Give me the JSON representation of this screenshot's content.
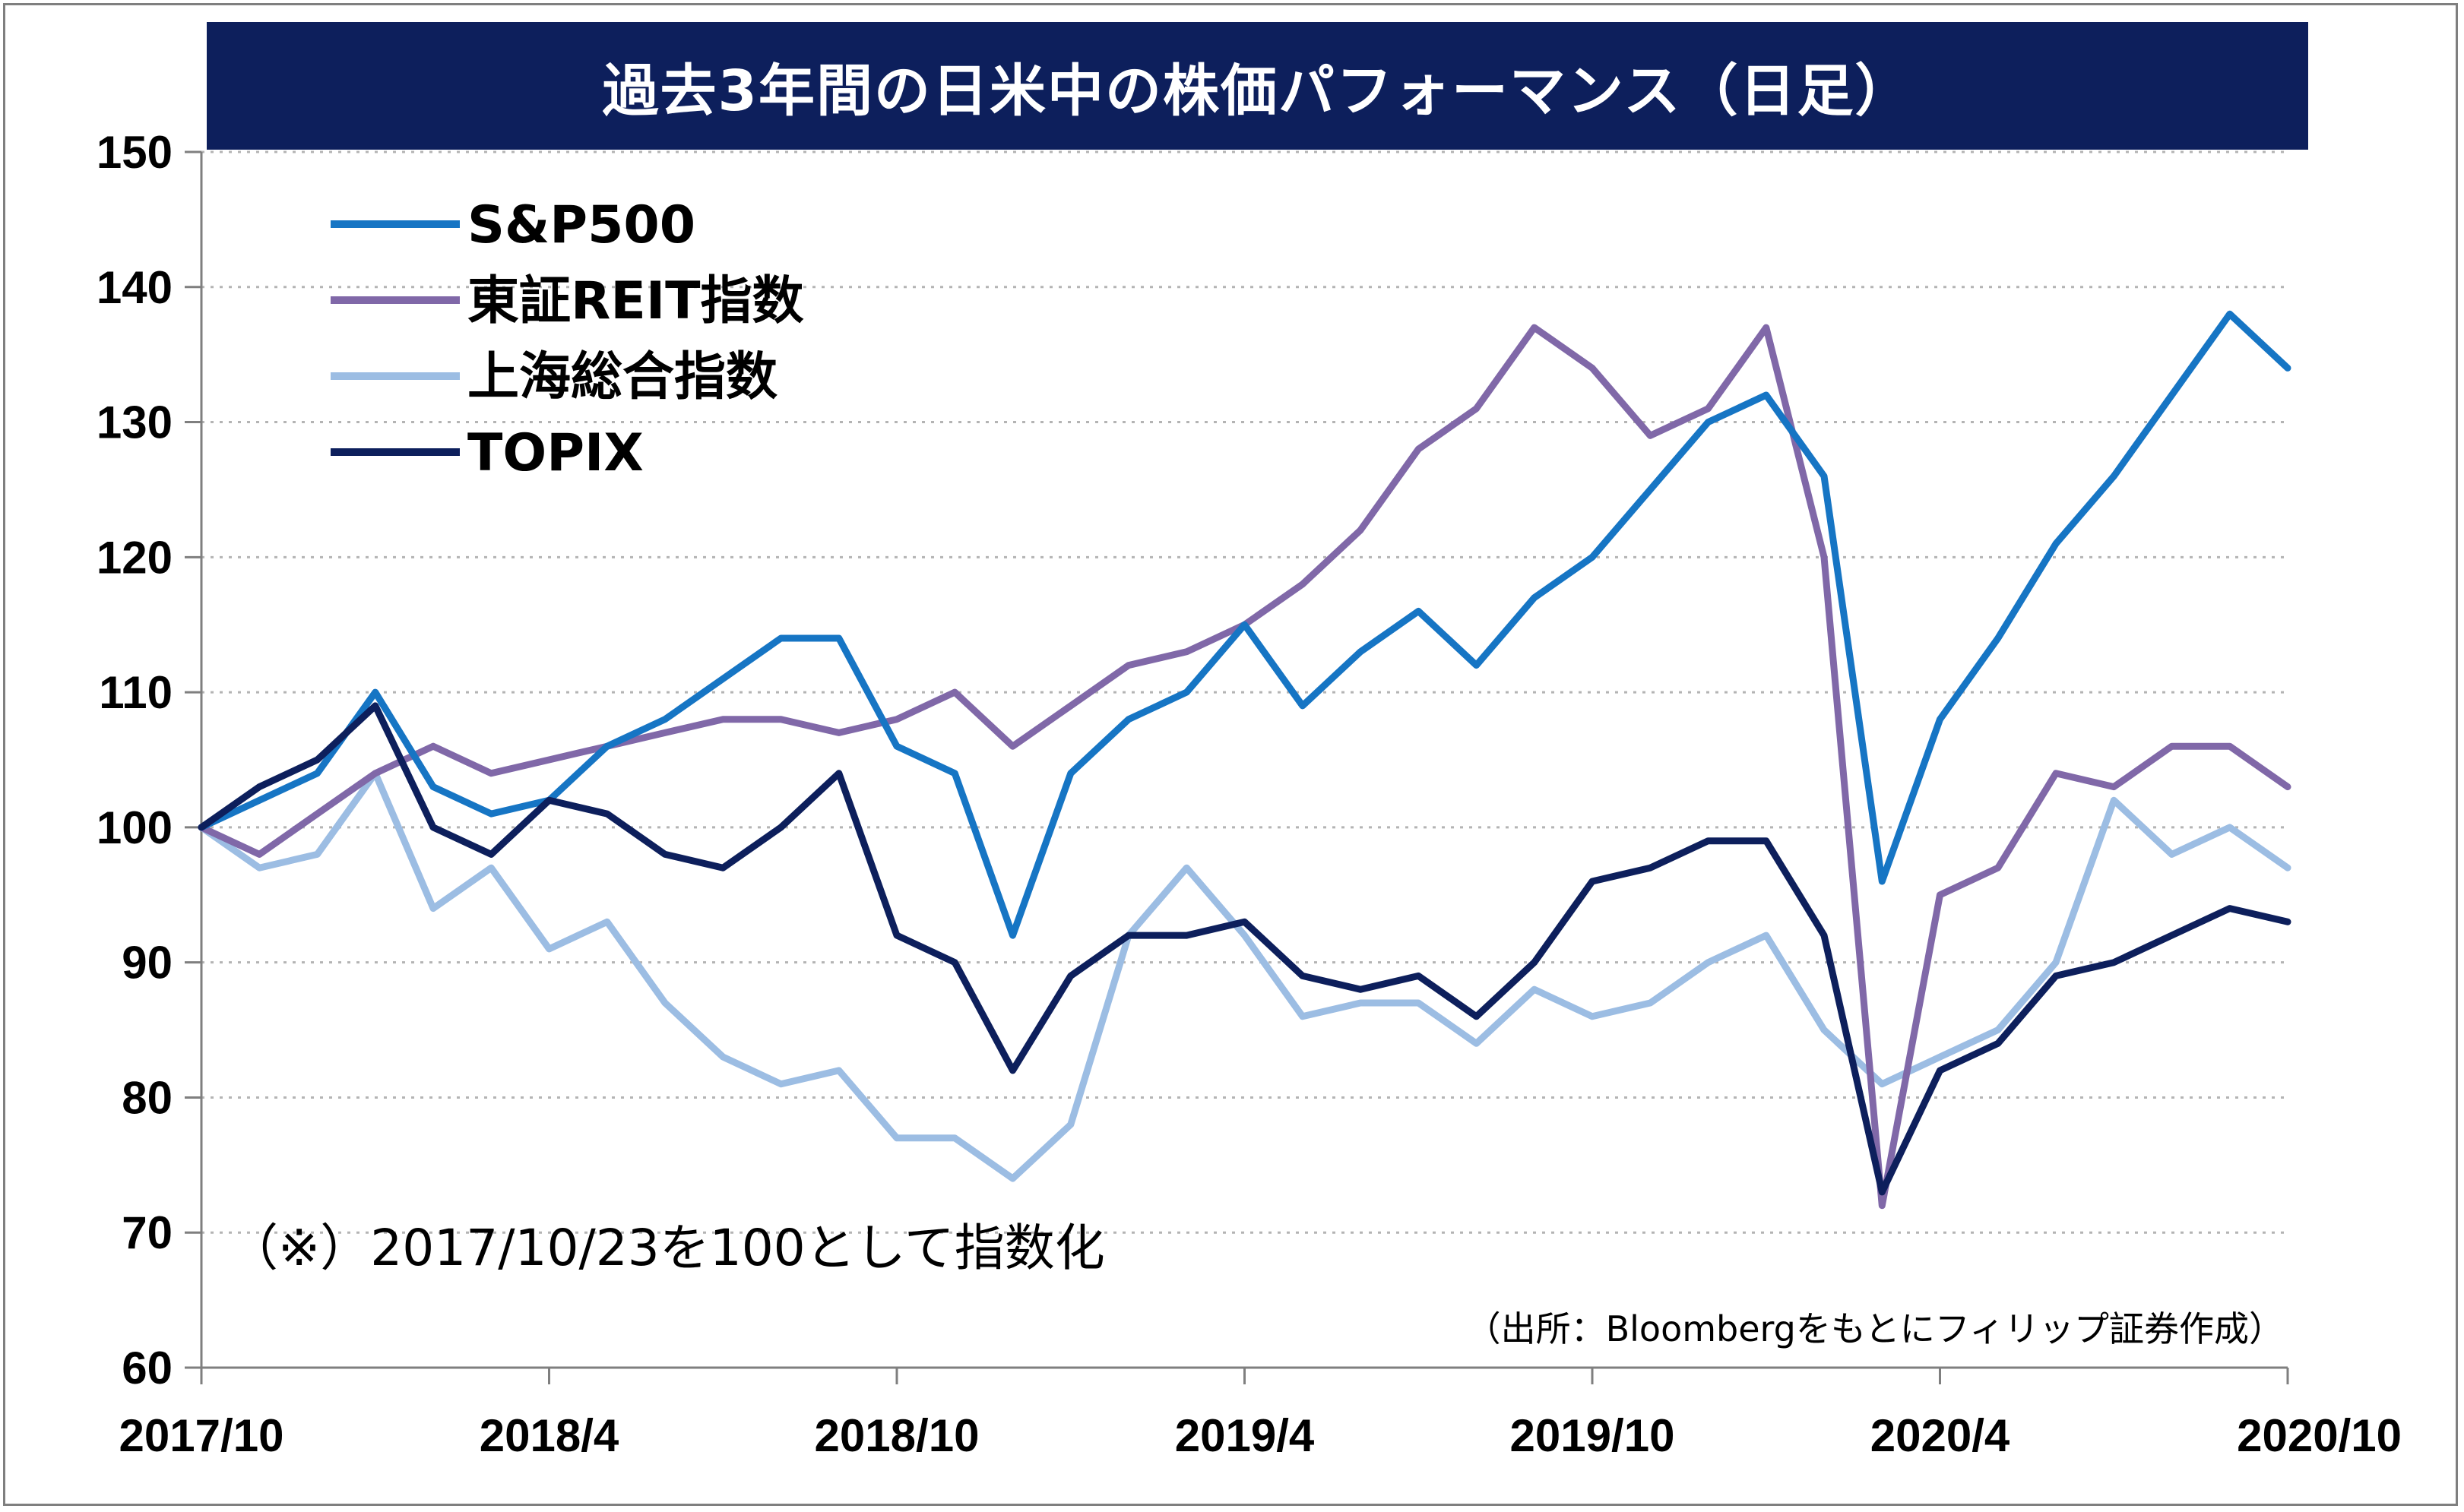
{
  "title": "過去3年間の日米中の株価パフォーマンス（日足）",
  "note": "（※）2017/10/23を100として指数化",
  "source": "（出所：Bloombergをもとにフィリップ証券作成）",
  "colors": {
    "title_bg": "#0d1f5c",
    "sp500": "#1675c4",
    "reit": "#8068a8",
    "shanghai": "#9cbde3",
    "topix": "#0d1f5c",
    "grid": "#b4b4b4",
    "axis": "#7f7f7f"
  },
  "chart_data": {
    "type": "line",
    "title": "過去3年間の日米中の株価パフォーマンス（日足）",
    "xlabel": "",
    "ylabel": "",
    "ylim": [
      60,
      150
    ],
    "yticks": [
      60,
      70,
      80,
      90,
      100,
      110,
      120,
      130,
      140,
      150
    ],
    "xlim": [
      "2017-10",
      "2020-10"
    ],
    "xticks": [
      "2017/10",
      "2018/4",
      "2018/10",
      "2019/4",
      "2019/10",
      "2020/4",
      "2020/10"
    ],
    "grid": "horizontal-dotted",
    "legend": "top-left",
    "x": [
      "2017-10",
      "2017-11",
      "2017-12",
      "2018-01",
      "2018-02",
      "2018-03",
      "2018-04",
      "2018-05",
      "2018-06",
      "2018-07",
      "2018-08",
      "2018-09",
      "2018-10",
      "2018-11",
      "2018-12",
      "2019-01",
      "2019-02",
      "2019-03",
      "2019-04",
      "2019-05",
      "2019-06",
      "2019-07",
      "2019-08",
      "2019-09",
      "2019-10",
      "2019-11",
      "2019-12",
      "2020-01",
      "2020-02",
      "2020-03",
      "2020-04",
      "2020-05",
      "2020-06",
      "2020-07",
      "2020-08",
      "2020-09",
      "2020-10"
    ],
    "series": [
      {
        "name": "S&P500",
        "values": [
          100,
          102,
          104,
          110,
          103,
          101,
          102,
          106,
          108,
          111,
          114,
          114,
          106,
          104,
          92,
          104,
          108,
          110,
          115,
          109,
          113,
          116,
          112,
          117,
          120,
          125,
          130,
          132,
          126,
          96,
          108,
          114,
          121,
          126,
          132,
          138,
          134
        ]
      },
      {
        "name": "東証REIT指数",
        "values": [
          100,
          98,
          101,
          104,
          106,
          104,
          105,
          106,
          107,
          108,
          108,
          107,
          108,
          110,
          106,
          109,
          112,
          113,
          115,
          118,
          122,
          128,
          131,
          137,
          134,
          129,
          131,
          137,
          120,
          72,
          95,
          97,
          104,
          103,
          106,
          106,
          103
        ]
      },
      {
        "name": "上海総合指数",
        "values": [
          100,
          97,
          98,
          104,
          94,
          97,
          91,
          93,
          87,
          83,
          81,
          82,
          77,
          77,
          74,
          78,
          92,
          97,
          92,
          86,
          87,
          87,
          84,
          88,
          86,
          87,
          90,
          92,
          85,
          81,
          83,
          85,
          90,
          102,
          98,
          100,
          97
        ]
      },
      {
        "name": "TOPIX",
        "values": [
          100,
          103,
          105,
          109,
          100,
          98,
          102,
          101,
          98,
          97,
          100,
          104,
          92,
          90,
          82,
          89,
          92,
          92,
          93,
          89,
          88,
          89,
          86,
          90,
          96,
          97,
          99,
          99,
          92,
          73,
          82,
          84,
          89,
          90,
          92,
          94,
          93
        ]
      }
    ]
  }
}
